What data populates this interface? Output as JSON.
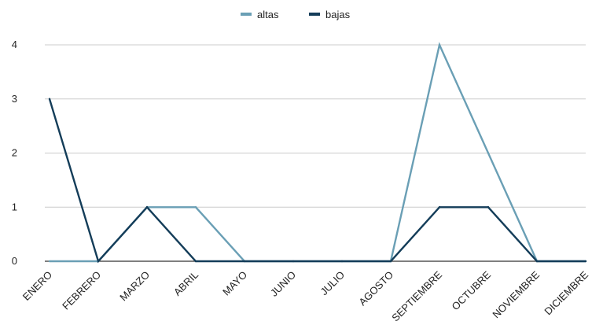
{
  "chart_data": {
    "type": "line",
    "categories": [
      "ENERO",
      "FEBRERO",
      "MARZO",
      "ABRIL",
      "MAYO",
      "JUNIO",
      "JULIO",
      "AGOSTO",
      "SEPTIEMBRE",
      "OCTUBRE",
      "NOVIEMBRE",
      "DICIEMBRE"
    ],
    "series": [
      {
        "name": "altas",
        "color": "#6a9fb5",
        "values": [
          0,
          0,
          1,
          1,
          0,
          0,
          0,
          0,
          4,
          2,
          0,
          0
        ]
      },
      {
        "name": "bajas",
        "color": "#143d59",
        "values": [
          3,
          0,
          1,
          0,
          0,
          0,
          0,
          0,
          1,
          1,
          0,
          0
        ]
      }
    ],
    "yticks": [
      0,
      1,
      2,
      3,
      4
    ],
    "ylim": [
      0,
      4
    ],
    "grid": true,
    "legend_position": "top-center",
    "title": "",
    "xlabel": "",
    "ylabel": ""
  }
}
